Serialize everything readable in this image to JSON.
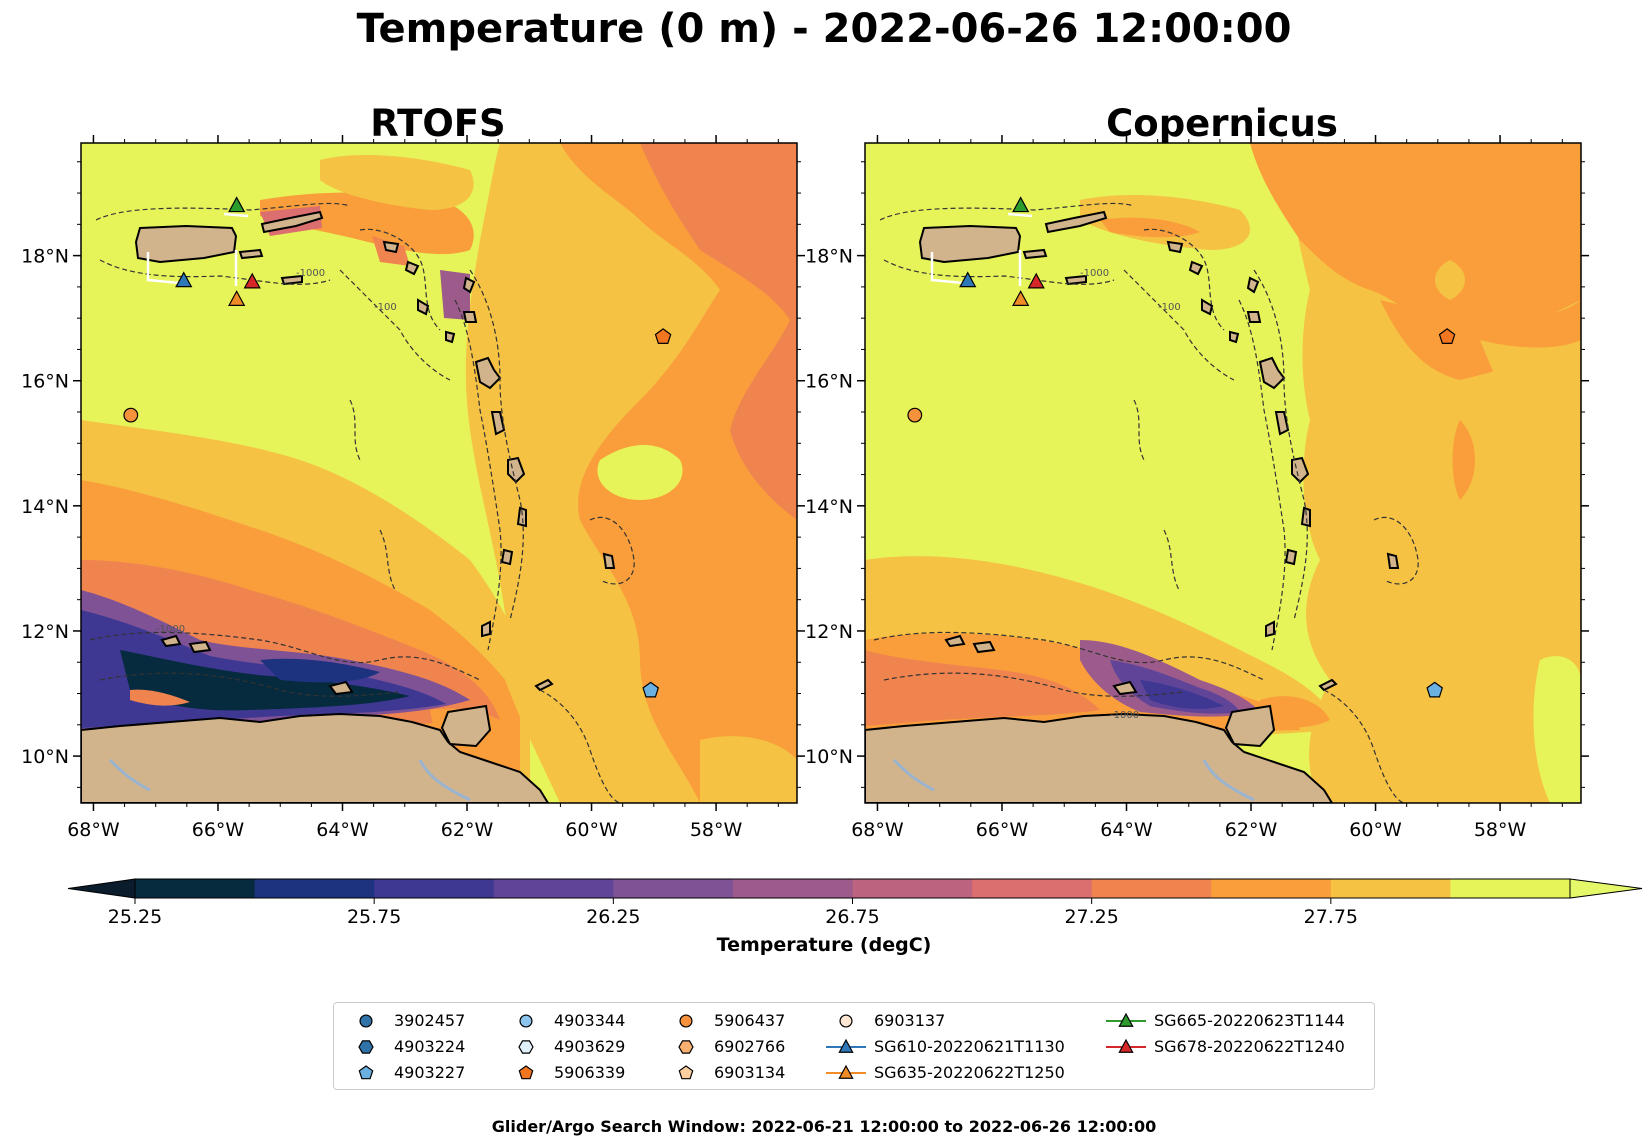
{
  "title": "Temperature (0 m) - 2022-06-26 12:00:00",
  "panels": [
    {
      "title": "RTOFS"
    },
    {
      "title": "Copernicus"
    }
  ],
  "axes": {
    "lat_ticks": [
      "10°N",
      "12°N",
      "14°N",
      "16°N",
      "18°N"
    ],
    "lon_ticks": [
      "68°W",
      "66°W",
      "64°W",
      "62°W",
      "60°W",
      "58°W"
    ],
    "lon_range": [
      -68.2,
      -56.7
    ],
    "lat_range": [
      9.25,
      19.8
    ]
  },
  "contour_labels": [
    "-1000",
    "-100",
    "-1000",
    "-1000"
  ],
  "colorbar": {
    "ticks": [
      "25.25",
      "25.75",
      "26.25",
      "26.75",
      "27.25",
      "27.75"
    ],
    "label": "Temperature (degC)",
    "colors": [
      "#062a3e",
      "#1d3380",
      "#3e3893",
      "#5f4497",
      "#7e5294",
      "#9c5b8a",
      "#bc6380",
      "#db6e6e",
      "#f0844f",
      "#f99e3b",
      "#f5c243",
      "#e6f459"
    ],
    "min_color": "#0b1c2c",
    "max_color": "#e4f86a"
  },
  "legend": {
    "items": [
      {
        "label": "3902457",
        "marker": "circle",
        "color": "#2f73a9"
      },
      {
        "label": "4903224",
        "marker": "hexagon",
        "color": "#2f73a9"
      },
      {
        "label": "4903227",
        "marker": "pentagon",
        "color": "#6ab0e0"
      },
      {
        "label": "4903344",
        "marker": "circle",
        "color": "#8bc4ec"
      },
      {
        "label": "4903629",
        "marker": "hexagon",
        "color": "#dff0fb"
      },
      {
        "label": "5906339",
        "marker": "pentagon",
        "color": "#f1761f"
      },
      {
        "label": "5906437",
        "marker": "circle",
        "color": "#f6923b"
      },
      {
        "label": "6902766",
        "marker": "hexagon",
        "color": "#f9b070"
      },
      {
        "label": "6903134",
        "marker": "pentagon",
        "color": "#fbcf9e"
      },
      {
        "label": "6903137",
        "marker": "circle",
        "color": "#fde6d2"
      },
      {
        "label": "SG610-20220621T1130",
        "marker": "triangle-line",
        "color": "#2e78b7"
      },
      {
        "label": "SG635-20220622T1250",
        "marker": "triangle-line",
        "color": "#f08c28"
      },
      {
        "label": "SG665-20220623T1144",
        "marker": "triangle-line",
        "color": "#2c9c2c"
      },
      {
        "label": "SG678-20220622T1240",
        "marker": "triangle-line",
        "color": "#d62728"
      }
    ]
  },
  "markers": [
    {
      "name": "SG665-20220623T1144",
      "shape": "triangle",
      "lon": -65.7,
      "lat": 18.8,
      "color": "#2c9c2c"
    },
    {
      "name": "SG610-20220621T1130",
      "shape": "triangle",
      "lon": -66.55,
      "lat": 17.6,
      "color": "#2e78b7"
    },
    {
      "name": "SG678-20220622T1240",
      "shape": "triangle",
      "lon": -65.45,
      "lat": 17.58,
      "color": "#d62728"
    },
    {
      "name": "SG635-20220622T1250",
      "shape": "triangle",
      "lon": -65.7,
      "lat": 17.3,
      "color": "#f08c28"
    },
    {
      "name": "5906339",
      "shape": "pentagon",
      "lon": -58.85,
      "lat": 16.7,
      "color": "#f1761f"
    },
    {
      "name": "5906437",
      "shape": "circle",
      "lon": -67.4,
      "lat": 15.45,
      "color": "#f6923b"
    },
    {
      "name": "4903227",
      "shape": "pentagon",
      "lon": -59.05,
      "lat": 11.05,
      "color": "#6ab0e0"
    }
  ],
  "search_window": "Glider/Argo Search Window: 2022-06-21 12:00:00 to 2022-06-26 12:00:00",
  "colors": {
    "land": "#d2b48c",
    "ocean_high": "#e6f459",
    "ocean_warm": "#f5c243",
    "ocean_orange": "#f99e3b",
    "ocean_red": "#f0844f",
    "river": "#9ab4d0"
  }
}
